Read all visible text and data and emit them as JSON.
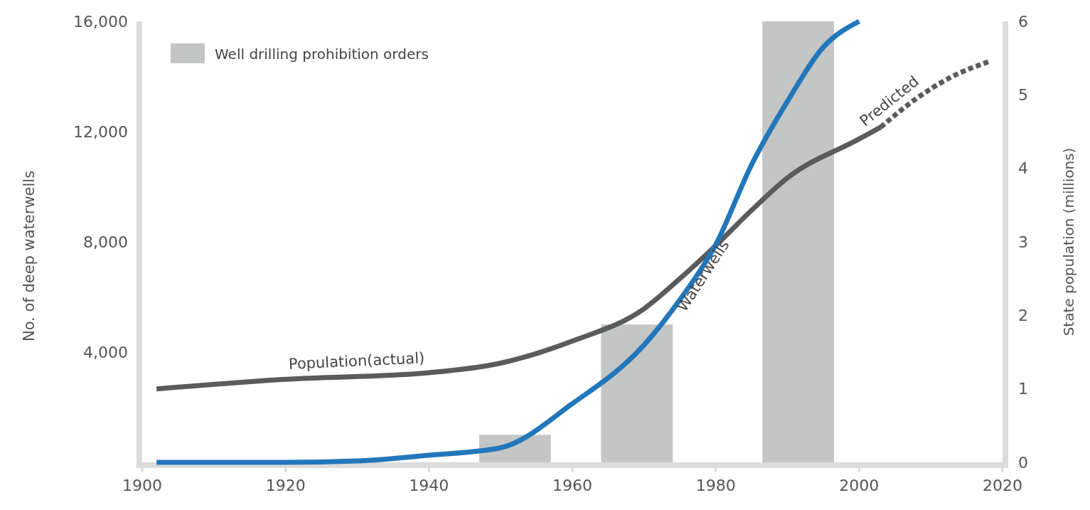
{
  "chart_data": {
    "type": "line",
    "xlabel": null,
    "ylabel": "No. of deep waterwells",
    "y2label": "State population (millions)",
    "xlim": [
      1900,
      2020
    ],
    "xticks": [
      1900,
      1920,
      1940,
      1960,
      1980,
      2000,
      2020
    ],
    "ylim": [
      0,
      16000
    ],
    "yticks": [
      {
        "value": 4000,
        "label": "4,000"
      },
      {
        "value": 8000,
        "label": "8,000"
      },
      {
        "value": 12000,
        "label": "12,000"
      },
      {
        "value": 16000,
        "label": "16,000"
      }
    ],
    "y2lim": [
      0,
      6
    ],
    "y2ticks": [
      0,
      1,
      2,
      3,
      4,
      5,
      6
    ],
    "legend": "top left",
    "grid": false,
    "series": [
      {
        "name": "Well drilling prohibition orders",
        "type": "bar",
        "color": "#c4c5c5",
        "x": [
          1952,
          1969,
          1991.5
        ],
        "values": [
          1000,
          5000,
          16000
        ]
      },
      {
        "name": "Population(actual)",
        "axis": "y2",
        "color": "#5a5c5c",
        "line_style": "solid",
        "x": [
          1902,
          1920,
          1940,
          1950,
          1960,
          1970,
          1975,
          1980,
          1985,
          1990,
          2000,
          2003
        ],
        "values": [
          1.0,
          1.13,
          1.22,
          1.35,
          1.65,
          2.09,
          2.5,
          2.95,
          3.43,
          3.87,
          4.4,
          4.56
        ]
      },
      {
        "name": "Predicted",
        "axis": "y2",
        "color": "#5a5c5c",
        "line_style": "dashed",
        "x": [
          2003,
          2008,
          2013,
          2018
        ],
        "values": [
          4.56,
          4.95,
          5.25,
          5.45
        ]
      },
      {
        "name": "Waterwells",
        "color": "#2277bb",
        "line_style": "solid",
        "x": [
          1902,
          1920,
          1930,
          1940,
          1950,
          1960,
          1970,
          1975,
          1980,
          1985,
          1990,
          1995,
          2000
        ],
        "values": [
          0,
          0,
          50,
          260,
          530,
          2130,
          4260,
          5900,
          7900,
          10800,
          13100,
          15060,
          16000
        ]
      }
    ]
  }
}
